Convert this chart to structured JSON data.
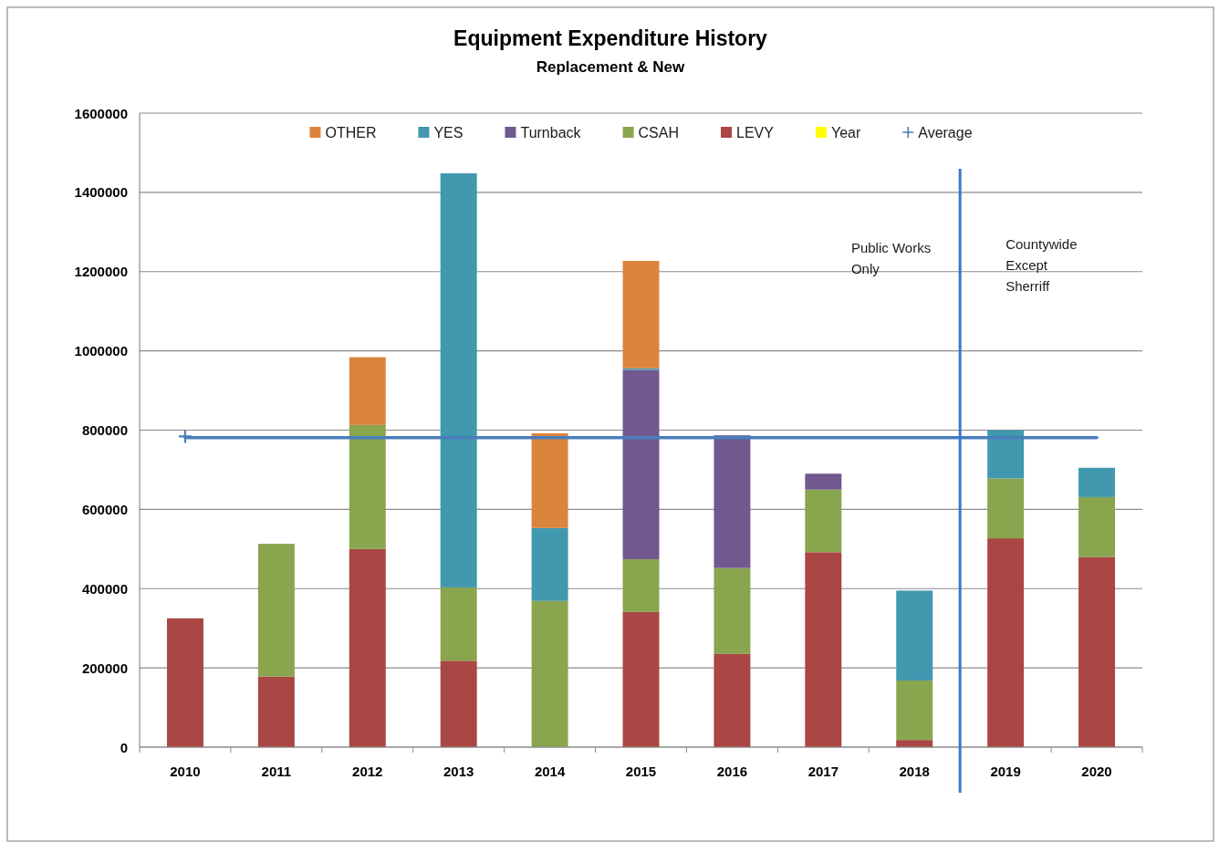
{
  "chart_data": {
    "type": "bar",
    "title": "Equipment Expenditure History",
    "subtitle": "Replacement & New",
    "x": [
      2010,
      2011,
      2012,
      2013,
      2014,
      2015,
      2016,
      2017,
      2018,
      2019,
      2020
    ],
    "xlim": [
      2009.5,
      2020.5
    ],
    "xticks": [
      2010,
      2011,
      2012,
      2013,
      2014,
      2015,
      2016,
      2017,
      2018,
      2019,
      2020
    ],
    "ylim": [
      0,
      1600000
    ],
    "yticks": [
      0,
      200000,
      400000,
      600000,
      800000,
      1000000,
      1200000,
      1400000,
      1600000
    ],
    "grid": "y",
    "stacked": true,
    "legend": "top",
    "series": [
      {
        "name": "Year",
        "color": "#ffff00",
        "values": [
          null,
          null,
          null,
          null,
          null,
          null,
          null,
          null,
          null,
          null,
          null
        ]
      },
      {
        "name": "LEVY",
        "color": "#aa4643",
        "values": [
          325000,
          178000,
          500000,
          218000,
          null,
          341000,
          235000,
          492000,
          18000,
          527000,
          480000
        ]
      },
      {
        "name": "CSAH",
        "color": "#89a54e",
        "values": [
          null,
          335000,
          313000,
          185000,
          369000,
          133000,
          217000,
          158000,
          150000,
          151000,
          151000
        ]
      },
      {
        "name": "Turnback",
        "color": "#71588f",
        "values": [
          null,
          null,
          null,
          null,
          null,
          478000,
          335000,
          40000,
          null,
          null,
          null
        ]
      },
      {
        "name": "YES",
        "color": "#4198af",
        "values": [
          null,
          null,
          null,
          1045000,
          184000,
          4000,
          null,
          null,
          227000,
          122000,
          74000
        ]
      },
      {
        "name": "OTHER",
        "color": "#db843d",
        "values": [
          null,
          null,
          171000,
          null,
          239000,
          271000,
          null,
          null,
          null,
          null,
          null
        ]
      },
      {
        "name": "Average",
        "type": "scatter",
        "color": "#4a7ebb",
        "marker": "cross",
        "x": [
          2010
        ],
        "values": [
          784000
        ]
      }
    ],
    "ref_lines": [
      {
        "axis": "y",
        "value": 781000,
        "color": "#4a7ebb"
      },
      {
        "axis": "x",
        "value": 2018.5,
        "color": "#3d76c6"
      }
    ],
    "annotations": [
      "Public Works\nOnly",
      "Countywide\nExcept\nSherriff"
    ]
  }
}
